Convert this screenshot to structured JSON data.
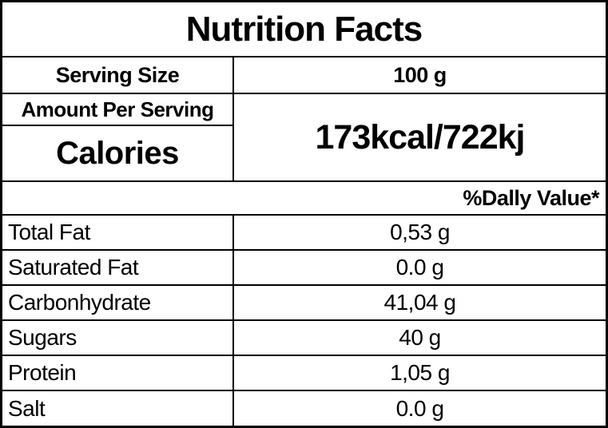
{
  "nutrition_label": {
    "title": "Nutrition Facts",
    "serving": {
      "label": "Serving Size",
      "value": "100 g"
    },
    "amount_per_serving_label": "Amount Per Serving",
    "calories": {
      "label": "Calories",
      "value": "173kcal/722kj"
    },
    "daily_value_header": "%Dally Value*",
    "nutrients": [
      {
        "name": "Total Fat",
        "value": "0,53 g"
      },
      {
        "name": "Saturated Fat",
        "value": "0.0 g"
      },
      {
        "name": "Carbonhydrate",
        "value": "41,04 g"
      },
      {
        "name": "Sugars",
        "value": "40 g"
      },
      {
        "name": "Protein",
        "value": "1,05 g"
      },
      {
        "name": "Salt",
        "value": "0.0 g"
      }
    ]
  },
  "colors": {
    "border": "#000000",
    "background": "#ffffff",
    "text": "#000000"
  }
}
